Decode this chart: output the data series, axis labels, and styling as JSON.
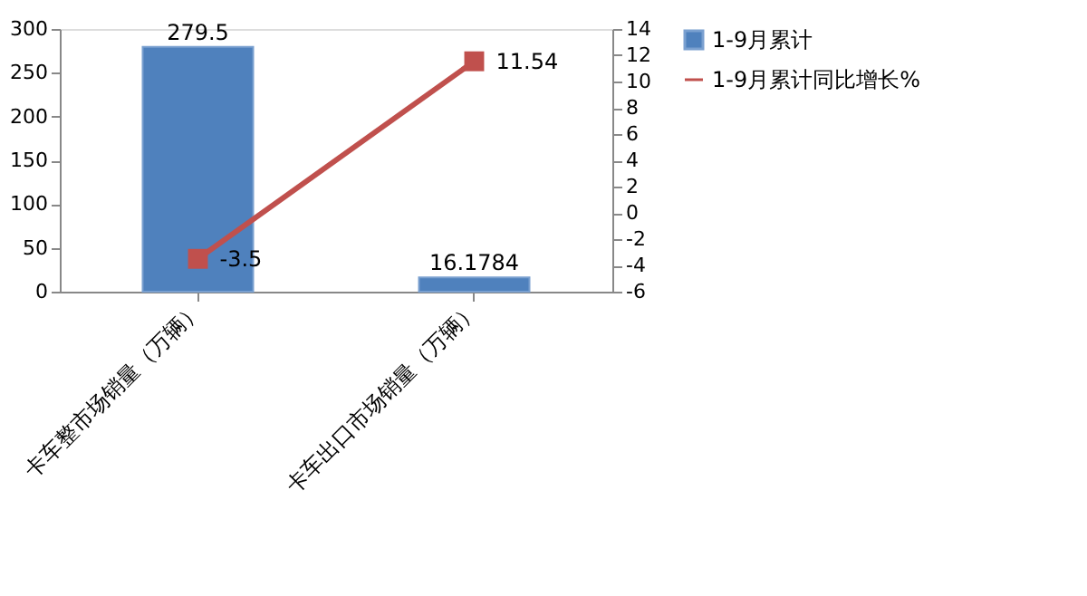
{
  "chart_data": {
    "type": "bar",
    "categories": [
      "卡车整市场销量（万辆）",
      "卡车出口市场销量（万辆）"
    ],
    "series": [
      {
        "name": "1-9月累计",
        "color": "#4f81bd",
        "values": [
          279.5,
          16.1784
        ]
      },
      {
        "name": "1-9月累计同比增长%",
        "type": "line",
        "axis": "y2",
        "color": "#c0504d",
        "marker": "square",
        "values": [
          -3.5,
          11.54
        ]
      }
    ],
    "ylim": [
      0,
      300
    ],
    "yticks": [
      0,
      50,
      100,
      150,
      200,
      250,
      300
    ],
    "y2lim": [
      -6,
      14
    ],
    "y2ticks": [
      -6,
      -4,
      -2,
      0,
      2,
      4,
      6,
      8,
      10,
      12,
      14
    ],
    "data_labels": true,
    "grid": false,
    "legend": "right"
  }
}
